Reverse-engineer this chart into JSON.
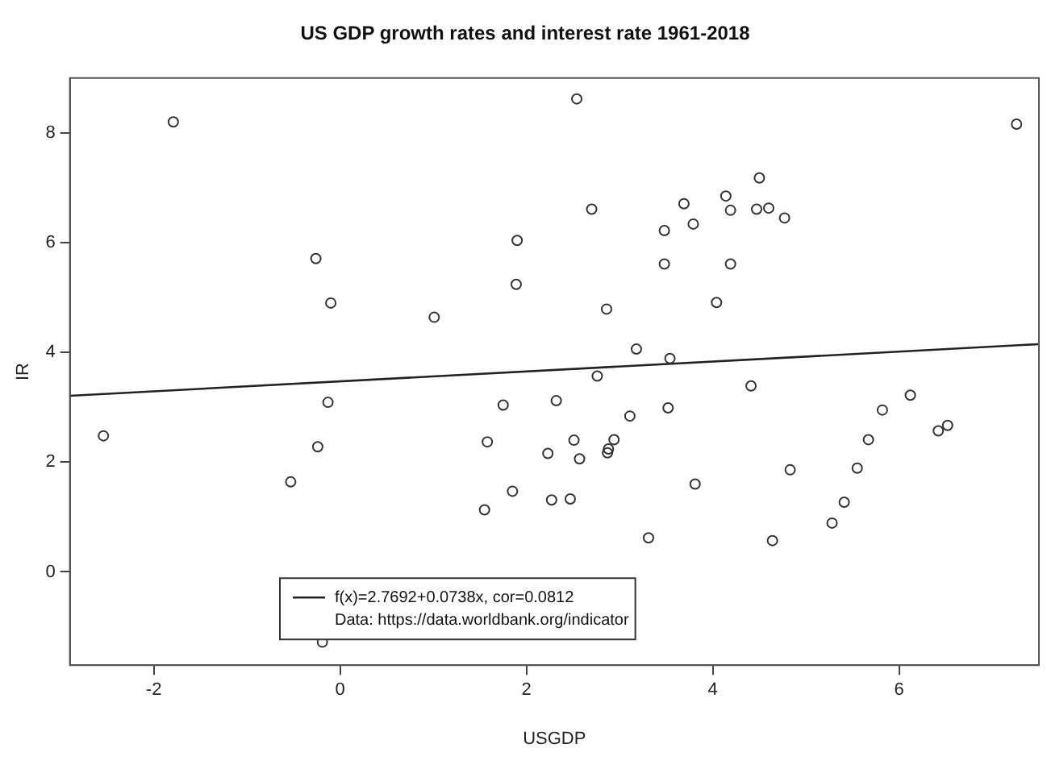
{
  "chart_data": {
    "type": "scatter",
    "title": "US GDP growth rates and interest rate 1961-2018",
    "xlabel": "USGDP",
    "ylabel": "IR",
    "xlim": [
      -2.9,
      7.5
    ],
    "ylim": [
      -1.7,
      9
    ],
    "xticks": [
      -2,
      0,
      2,
      4,
      6
    ],
    "yticks": [
      0,
      2,
      4,
      6,
      8
    ],
    "grid": false,
    "legend": "bottom",
    "marker": "circle",
    "annotations": [
      "Data: https://data.worldbank.org/indicator"
    ],
    "series": [
      {
        "color": "#333333",
        "x": [
          -1.79,
          -0.26,
          -0.1,
          1.01,
          2.54,
          7.26,
          4.5,
          4.14,
          3.69,
          2.7,
          4.19,
          4.47,
          4.6,
          4.77,
          3.79,
          3.48,
          1.9,
          3.48,
          4.19,
          1.89,
          4.04,
          2.86,
          3.18,
          3.54,
          2.76,
          4.41,
          -2.54,
          -0.13,
          -0.24,
          -0.53,
          -0.19,
          1.75,
          1.58,
          1.55,
          1.85,
          2.32,
          3.11,
          3.52,
          2.23,
          2.51,
          2.57,
          2.88,
          2.87,
          2.94,
          2.27,
          2.47,
          3.81,
          3.31,
          4.83,
          4.64,
          5.28,
          5.41,
          5.55,
          5.67,
          5.82,
          6.12,
          6.42,
          6.52
        ],
        "values": [
          8.2,
          5.71,
          4.9,
          4.64,
          8.62,
          8.16,
          7.18,
          6.85,
          6.71,
          6.61,
          6.59,
          6.61,
          6.63,
          6.45,
          6.34,
          6.22,
          6.04,
          5.61,
          5.61,
          5.24,
          4.91,
          4.79,
          4.06,
          3.89,
          3.57,
          3.39,
          2.48,
          3.09,
          2.28,
          1.64,
          -1.28,
          3.04,
          2.37,
          1.13,
          1.47,
          3.12,
          2.84,
          2.99,
          2.16,
          2.4,
          2.06,
          2.24,
          2.17,
          2.41,
          1.31,
          1.33,
          1.6,
          0.62,
          1.86,
          0.57,
          0.89,
          1.27,
          1.89,
          2.41,
          2.95,
          3.22,
          2.57,
          2.67
        ]
      },
      {
        "type": "line",
        "name": "f(x)=2.7692+0.0738x, cor=0.0812",
        "color": "#222222",
        "marker": "none",
        "line_style": "solid",
        "x": [
          -2.9,
          7.5
        ],
        "values": [
          3.21,
          4.15
        ]
      }
    ]
  }
}
